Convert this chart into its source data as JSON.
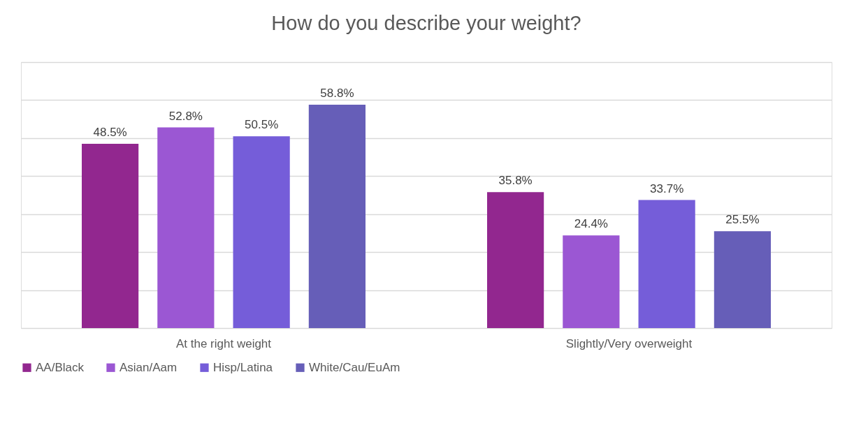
{
  "chart_data": {
    "type": "bar",
    "title": "How do you describe your weight?",
    "categories": [
      "At the right weight",
      "Slightly/Very overweight"
    ],
    "series": [
      {
        "name": "AA/Black",
        "color": "#92278f",
        "values": [
          48.5,
          35.8
        ],
        "value_labels": [
          "48.5%",
          "35.8%"
        ]
      },
      {
        "name": "Asian/Aam",
        "color": "#9b57d3",
        "values": [
          52.8,
          24.4
        ],
        "value_labels": [
          "52.8%",
          "24.4%"
        ]
      },
      {
        "name": "Hisp/Latina",
        "color": "#755dd9",
        "values": [
          50.5,
          33.7
        ],
        "value_labels": [
          "50.5%",
          "33.7%"
        ]
      },
      {
        "name": "White/Cau/EuAm",
        "color": "#665eb8",
        "values": [
          58.8,
          25.5
        ],
        "value_labels": [
          "58.8%",
          "25.5%"
        ]
      }
    ],
    "ylim": [
      0,
      70
    ],
    "yticks": [
      {
        "value": 0,
        "label": null
      },
      {
        "value": 10,
        "label": null
      },
      {
        "value": 20,
        "label": null
      },
      {
        "value": 30,
        "label": null
      },
      {
        "value": 40,
        "label": null
      },
      {
        "value": 50,
        "label": null
      },
      {
        "value": 60,
        "label": null
      },
      {
        "value": 70,
        "label": null
      }
    ],
    "tick_labels": "x",
    "grid": "y",
    "legend": "bottom"
  }
}
